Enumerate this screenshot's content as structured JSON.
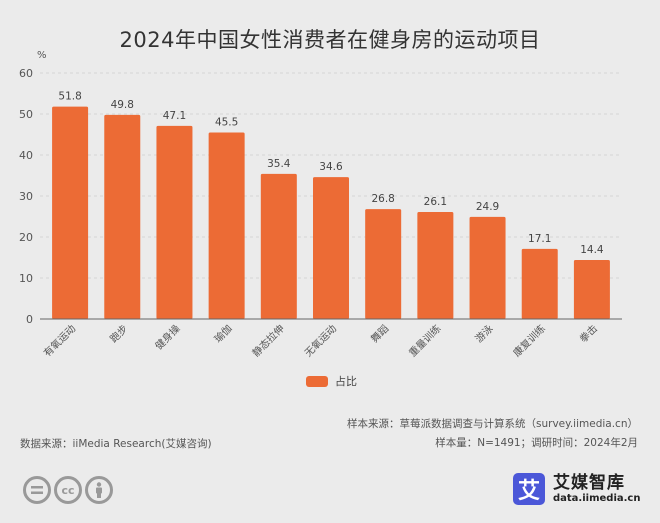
{
  "chart_data": {
    "type": "bar",
    "title": "2024年中国女性消费者在健身房的运动项目",
    "ylabel": "%",
    "xlabel": "",
    "ylim": [
      0,
      60
    ],
    "yticks": [
      0,
      10,
      20,
      30,
      40,
      50,
      60
    ],
    "grid": true,
    "legend_position": "bottom",
    "categories": [
      "有氧运动",
      "跑步",
      "健身操",
      "瑜伽",
      "静态拉伸",
      "无氧运动",
      "舞蹈",
      "重量训练",
      "游泳",
      "康复训练",
      "拳击"
    ],
    "series": [
      {
        "name": "占比",
        "color": "#ec6b35",
        "values": [
          51.8,
          49.8,
          47.1,
          45.5,
          35.4,
          34.6,
          26.8,
          26.1,
          24.9,
          17.1,
          14.4
        ]
      }
    ]
  },
  "footer": {
    "sample_source": "样本来源：草莓派数据调查与计算系统（survey.iimedia.cn）",
    "sample_size": "样本量：N=1491；调研时间：2024年2月",
    "data_source": "数据来源：iiMedia Research(艾媒咨询)"
  },
  "license_icons": [
    "equals-icon",
    "cc-icon",
    "person-icon"
  ],
  "license_labels": {
    "cc": "cc"
  },
  "brand": {
    "logo_glyph": "艾",
    "name": "艾媒智库",
    "url": "data.iimedia.cn"
  }
}
